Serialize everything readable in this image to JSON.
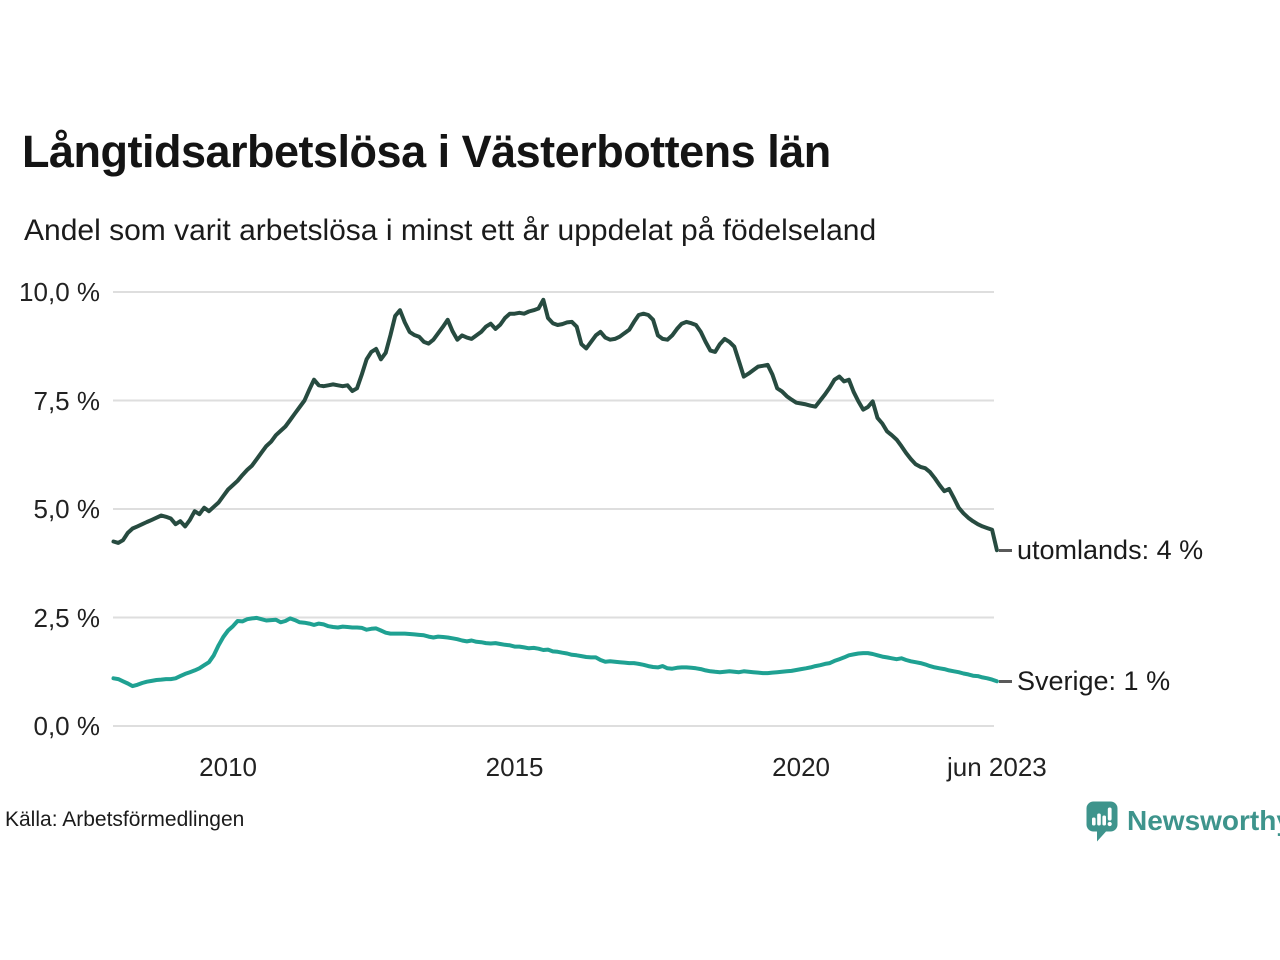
{
  "header": {
    "title": "Långtidsarbetslösa i Västerbottens län",
    "subtitle": "Andel som varit arbetslösa i minst ett år uppdelat på födelseland"
  },
  "source": {
    "label": "Källa: Arbetsförmedlingen"
  },
  "branding": {
    "name": "Newsworthy",
    "color": "#3e948c",
    "icon": "newsworthy-speech-bubble-bar-chart-icon"
  },
  "colors": {
    "grid": "#dedede",
    "text": "#1b1b1b",
    "annotation_dash": "#5a5a5a"
  },
  "chart_data": {
    "type": "line",
    "title": "Långtidsarbetslösa i Västerbottens län",
    "subtitle": "Andel som varit arbetslösa i minst ett år uppdelat på födelseland",
    "xlabel": "",
    "ylabel": "",
    "x_unit": "decimal_year_monthly",
    "x_start": 2008.0,
    "x_step": 0.0833333,
    "x_end": 2023.4167,
    "ylim": [
      0,
      10.3
    ],
    "xlim": [
      2008.0,
      2023.5
    ],
    "grid": "horizontal",
    "legend_position": "end-of-line-labels",
    "y_ticks": [
      {
        "label": "0,0 %",
        "value": 0
      },
      {
        "label": "2,5 %",
        "value": 2.5
      },
      {
        "label": "5,0 %",
        "value": 5
      },
      {
        "label": "7,5 %",
        "value": 7.5
      },
      {
        "label": "10,0 %",
        "value": 10
      }
    ],
    "x_ticks": [
      {
        "label": "2010",
        "value": 2010
      },
      {
        "label": "2015",
        "value": 2015
      },
      {
        "label": "2020",
        "value": 2020
      },
      {
        "label": "jun 2023",
        "value": 2023.4167
      }
    ],
    "series": [
      {
        "name": "utomlands",
        "end_label": "utomlands: 4 %",
        "color": "#274b40",
        "values": [
          4.25,
          4.22,
          4.28,
          4.45,
          4.55,
          4.6,
          4.65,
          4.7,
          4.75,
          4.8,
          4.85,
          4.82,
          4.78,
          4.65,
          4.72,
          4.6,
          4.75,
          4.95,
          4.88,
          5.03,
          4.95,
          5.05,
          5.15,
          5.3,
          5.45,
          5.55,
          5.65,
          5.78,
          5.9,
          6.0,
          6.15,
          6.3,
          6.45,
          6.55,
          6.7,
          6.8,
          6.9,
          7.05,
          7.2,
          7.35,
          7.5,
          7.75,
          7.98,
          7.85,
          7.83,
          7.85,
          7.87,
          7.85,
          7.83,
          7.85,
          7.72,
          7.78,
          8.1,
          8.45,
          8.62,
          8.69,
          8.45,
          8.6,
          9.0,
          9.45,
          9.58,
          9.3,
          9.08,
          9.01,
          8.97,
          8.85,
          8.81,
          8.9,
          9.05,
          9.2,
          9.36,
          9.1,
          8.9,
          9.0,
          8.95,
          8.92,
          9.0,
          9.08,
          9.2,
          9.27,
          9.15,
          9.25,
          9.4,
          9.5,
          9.5,
          9.52,
          9.5,
          9.55,
          9.58,
          9.62,
          9.82,
          9.4,
          9.28,
          9.24,
          9.26,
          9.3,
          9.31,
          9.2,
          8.8,
          8.7,
          8.85,
          9.0,
          9.08,
          8.95,
          8.9,
          8.92,
          8.97,
          9.05,
          9.13,
          9.31,
          9.47,
          9.5,
          9.47,
          9.36,
          9.0,
          8.92,
          8.9,
          9.0,
          9.15,
          9.27,
          9.31,
          9.28,
          9.24,
          9.08,
          8.85,
          8.65,
          8.62,
          8.8,
          8.92,
          8.85,
          8.74,
          8.4,
          8.05,
          8.12,
          8.2,
          8.28,
          8.3,
          8.32,
          8.1,
          7.78,
          7.71,
          7.6,
          7.52,
          7.45,
          7.43,
          7.41,
          7.38,
          7.36,
          7.5,
          7.64,
          7.8,
          7.98,
          8.05,
          7.94,
          7.98,
          7.7,
          7.48,
          7.29,
          7.35,
          7.48,
          7.1,
          6.97,
          6.79,
          6.7,
          6.6,
          6.45,
          6.29,
          6.15,
          6.03,
          5.97,
          5.94,
          5.85,
          5.71,
          5.55,
          5.41,
          5.46,
          5.25,
          5.03,
          4.9,
          4.8,
          4.72,
          4.65,
          4.6,
          4.56,
          4.52,
          4.05
        ]
      },
      {
        "name": "Sverige",
        "end_label": "Sverige: 1 %",
        "color": "#1fa192",
        "values": [
          1.1,
          1.08,
          1.03,
          0.98,
          0.92,
          0.95,
          0.99,
          1.02,
          1.04,
          1.06,
          1.07,
          1.08,
          1.08,
          1.1,
          1.15,
          1.2,
          1.24,
          1.28,
          1.33,
          1.4,
          1.47,
          1.63,
          1.86,
          2.05,
          2.2,
          2.3,
          2.42,
          2.41,
          2.46,
          2.48,
          2.49,
          2.46,
          2.43,
          2.44,
          2.45,
          2.39,
          2.42,
          2.48,
          2.44,
          2.39,
          2.38,
          2.36,
          2.33,
          2.36,
          2.34,
          2.3,
          2.28,
          2.27,
          2.29,
          2.28,
          2.27,
          2.27,
          2.26,
          2.22,
          2.24,
          2.25,
          2.2,
          2.15,
          2.13,
          2.13,
          2.13,
          2.13,
          2.12,
          2.11,
          2.1,
          2.09,
          2.06,
          2.04,
          2.06,
          2.05,
          2.04,
          2.02,
          2.0,
          1.97,
          1.95,
          1.97,
          1.94,
          1.93,
          1.91,
          1.9,
          1.91,
          1.89,
          1.87,
          1.86,
          1.83,
          1.83,
          1.81,
          1.79,
          1.8,
          1.78,
          1.75,
          1.76,
          1.72,
          1.71,
          1.69,
          1.67,
          1.64,
          1.63,
          1.61,
          1.59,
          1.58,
          1.58,
          1.52,
          1.48,
          1.49,
          1.48,
          1.47,
          1.46,
          1.45,
          1.45,
          1.43,
          1.41,
          1.38,
          1.36,
          1.35,
          1.38,
          1.33,
          1.32,
          1.34,
          1.35,
          1.35,
          1.34,
          1.33,
          1.31,
          1.28,
          1.26,
          1.25,
          1.24,
          1.25,
          1.26,
          1.25,
          1.24,
          1.26,
          1.25,
          1.24,
          1.23,
          1.22,
          1.22,
          1.23,
          1.24,
          1.25,
          1.26,
          1.27,
          1.29,
          1.31,
          1.33,
          1.35,
          1.38,
          1.4,
          1.43,
          1.45,
          1.5,
          1.54,
          1.58,
          1.63,
          1.65,
          1.67,
          1.68,
          1.68,
          1.66,
          1.63,
          1.6,
          1.58,
          1.56,
          1.54,
          1.56,
          1.52,
          1.49,
          1.47,
          1.45,
          1.42,
          1.38,
          1.35,
          1.33,
          1.31,
          1.28,
          1.26,
          1.24,
          1.21,
          1.19,
          1.16,
          1.15,
          1.12,
          1.1,
          1.07,
          1.03
        ]
      }
    ]
  }
}
